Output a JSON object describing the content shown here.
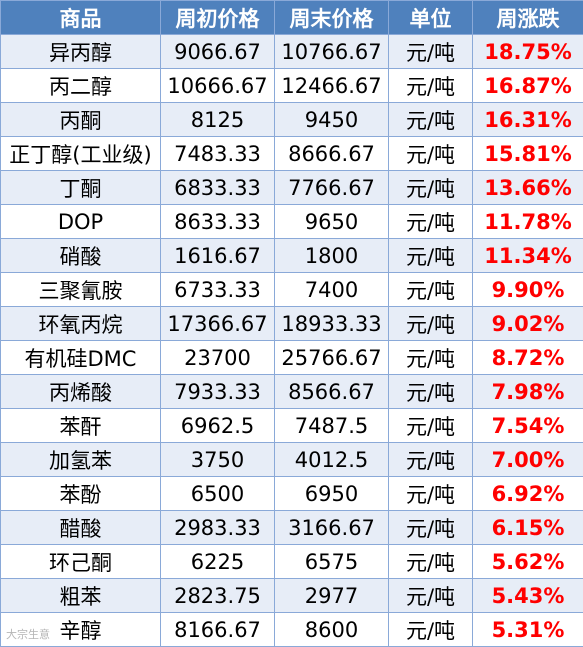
{
  "table": {
    "headers": [
      "商品",
      "周初价格",
      "周末价格",
      "单位",
      "周涨跌"
    ],
    "rows": [
      [
        "异丙醇",
        "9066.67",
        "10766.67",
        "元/吨",
        "18.75%"
      ],
      [
        "丙二醇",
        "10666.67",
        "12466.67",
        "元/吨",
        "16.87%"
      ],
      [
        "丙酮",
        "8125",
        "9450",
        "元/吨",
        "16.31%"
      ],
      [
        "正丁醇(工业级)",
        "7483.33",
        "8666.67",
        "元/吨",
        "15.81%"
      ],
      [
        "丁酮",
        "6833.33",
        "7766.67",
        "元/吨",
        "13.66%"
      ],
      [
        "DOP",
        "8633.33",
        "9650",
        "元/吨",
        "11.78%"
      ],
      [
        "硝酸",
        "1616.67",
        "1800",
        "元/吨",
        "11.34%"
      ],
      [
        "三聚氰胺",
        "6733.33",
        "7400",
        "元/吨",
        "9.90%"
      ],
      [
        "环氧丙烷",
        "17366.67",
        "18933.33",
        "元/吨",
        "9.02%"
      ],
      [
        "有机硅DMC",
        "23700",
        "25766.67",
        "元/吨",
        "8.72%"
      ],
      [
        "丙烯酸",
        "7933.33",
        "8566.67",
        "元/吨",
        "7.98%"
      ],
      [
        "苯酐",
        "6962.5",
        "7487.5",
        "元/吨",
        "7.54%"
      ],
      [
        "加氢苯",
        "3750",
        "4012.5",
        "元/吨",
        "7.00%"
      ],
      [
        "苯酚",
        "6500",
        "6950",
        "元/吨",
        "6.92%"
      ],
      [
        "醋酸",
        "2983.33",
        "3166.67",
        "元/吨",
        "6.15%"
      ],
      [
        "环己酮",
        "6225",
        "6575",
        "元/吨",
        "5.62%"
      ],
      [
        "粗苯",
        "2823.75",
        "2977",
        "元/吨",
        "5.43%"
      ],
      [
        "辛醇",
        "8166.67",
        "8600",
        "元/吨",
        "5.31%"
      ]
    ]
  },
  "watermark": "大宗生意"
}
